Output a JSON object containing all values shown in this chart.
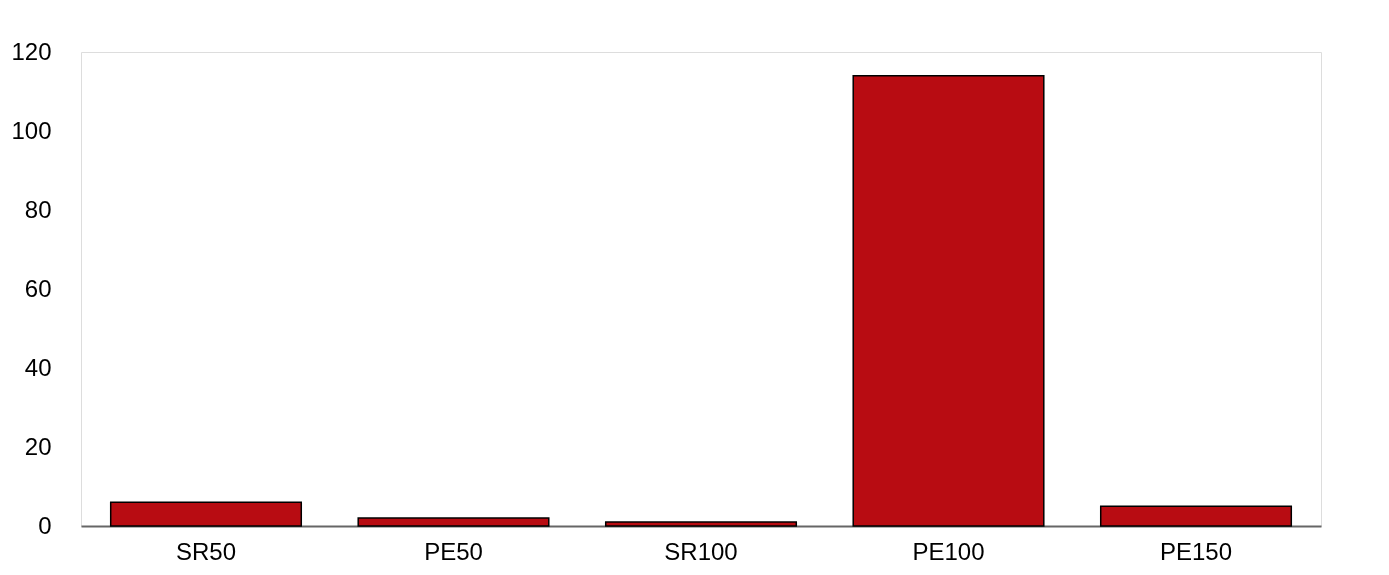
{
  "chart_data": {
    "type": "bar",
    "categories": [
      "SR50",
      "PE50",
      "SR100",
      "PE100",
      "PE150"
    ],
    "values": [
      6,
      2,
      1,
      114,
      5
    ],
    "color": "#b80c12",
    "ylim": [
      0,
      120
    ],
    "yticks": [
      0,
      20,
      40,
      60,
      80,
      100,
      120
    ],
    "grid": false
  }
}
